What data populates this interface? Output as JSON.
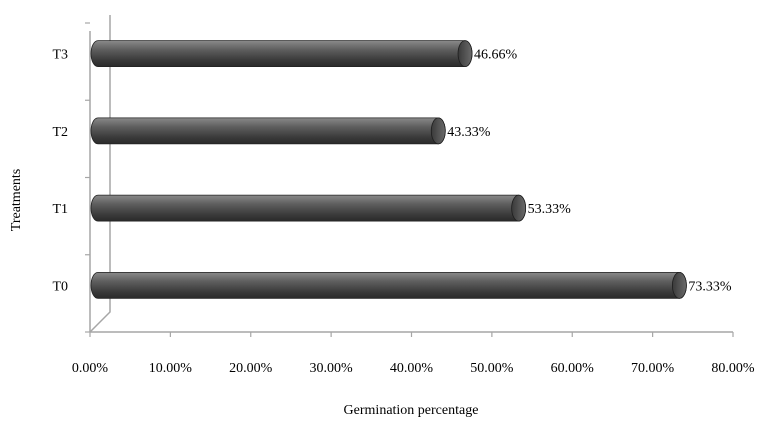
{
  "chart_data": {
    "type": "bar",
    "orientation": "horizontal",
    "style": "3d-cylinder",
    "categories": [
      "T0",
      "T1",
      "T2",
      "T3"
    ],
    "series": [
      {
        "values": [
          73.33,
          53.33,
          43.33,
          46.66
        ],
        "data_labels": [
          "73.33%",
          "53.33%",
          "43.33%",
          "46.66%"
        ]
      }
    ],
    "xlabel": "Germination percentage",
    "ylabel": "Treatments",
    "xlim": [
      0,
      80
    ],
    "x_ticks": [
      0,
      10,
      20,
      30,
      40,
      50,
      60,
      70,
      80
    ],
    "x_tick_labels": [
      "0.00%",
      "10.00%",
      "20.00%",
      "30.00%",
      "40.00%",
      "50.00%",
      "60.00%",
      "70.00%",
      "80.00%"
    ],
    "grid": false,
    "legend": "none",
    "colors": {
      "bar": "#555555",
      "bar_light": "#8a8a8a",
      "bar_dark": "#2a2a2a",
      "axis": "#a6a6a6"
    }
  }
}
